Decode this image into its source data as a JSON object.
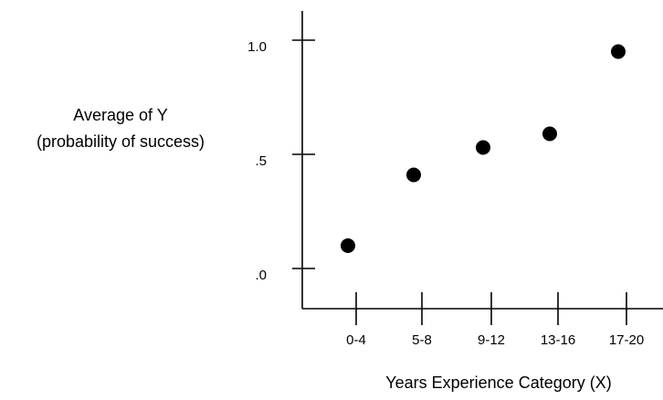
{
  "chart_data": {
    "type": "scatter",
    "title": "",
    "xlabel": "Years Experience Category (X)",
    "ylabel_lines": [
      "Average of Y",
      "(probability of success)"
    ],
    "categories": [
      "0-4",
      "5-8",
      "9-12",
      "13-16",
      "17-20"
    ],
    "y_tick_labels": [
      {
        "value": 0.0,
        "label": ".0"
      },
      {
        "value": 0.5,
        "label": ".5"
      },
      {
        "value": 1.0,
        "label": "1.0"
      }
    ],
    "ylim": [
      -0.2,
      1.15
    ],
    "grid": false,
    "legend": "none",
    "series": [
      {
        "values": [
          0.1,
          0.41,
          0.53,
          0.59,
          0.95
        ]
      }
    ],
    "colors": {
      "axis": "#000000",
      "point": "#000000"
    }
  }
}
